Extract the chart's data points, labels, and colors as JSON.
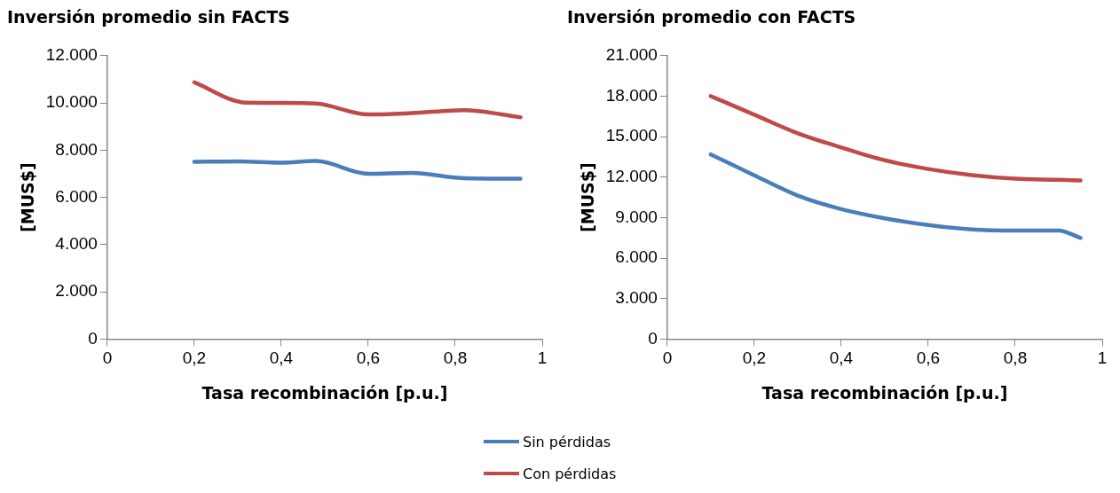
{
  "chart_data": [
    {
      "type": "line",
      "title": "Inversión promedio sin FACTS",
      "xlabel": "Tasa recombinación [p.u.]",
      "ylabel": "[MUS$]",
      "xlim": [
        0,
        1
      ],
      "ylim": [
        0,
        12000
      ],
      "xticks": [
        {
          "value": 0,
          "label": "0"
        },
        {
          "value": 0.2,
          "label": "0,2"
        },
        {
          "value": 0.4,
          "label": "0,4"
        },
        {
          "value": 0.6,
          "label": "0,6"
        },
        {
          "value": 0.8,
          "label": "0,8"
        },
        {
          "value": 1,
          "label": "1"
        }
      ],
      "yticks": [
        0,
        {
          "value": 2000,
          "label": "2.000"
        },
        {
          "value": 4000,
          "label": "4.000"
        },
        {
          "value": 6000,
          "label": "6.000"
        },
        {
          "value": 8000,
          "label": "8.000"
        },
        {
          "value": 10000,
          "label": "10.000"
        },
        {
          "value": 12000,
          "label": "12.000"
        }
      ],
      "grid": false,
      "legend": "bottom",
      "series": [
        {
          "name": "Sin pérdidas",
          "color": "#4a7ebb",
          "x": [
            0.2,
            0.3,
            0.4,
            0.48,
            0.6,
            0.7,
            0.82,
            0.95
          ],
          "values": [
            7510,
            7520,
            7470,
            7540,
            7000,
            7040,
            6810,
            6790
          ]
        },
        {
          "name": "Con pérdidas",
          "color": "#be4b48",
          "x": [
            0.2,
            0.32,
            0.4,
            0.48,
            0.6,
            0.7,
            0.82,
            0.95
          ],
          "values": [
            10870,
            10010,
            10000,
            9970,
            9510,
            9570,
            9690,
            9390
          ]
        }
      ]
    },
    {
      "type": "line",
      "title": "Inversión promedio con FACTS",
      "xlabel": "Tasa recombinación [p.u.]",
      "ylabel": "[MUS$]",
      "xlim": [
        0,
        1
      ],
      "ylim": [
        0,
        21000
      ],
      "xticks": [
        {
          "value": 0,
          "label": "0"
        },
        {
          "value": 0.2,
          "label": "0,2"
        },
        {
          "value": 0.4,
          "label": "0,4"
        },
        {
          "value": 0.6,
          "label": "0,6"
        },
        {
          "value": 0.8,
          "label": "0,8"
        },
        {
          "value": 1,
          "label": "1"
        }
      ],
      "yticks": [
        0,
        {
          "value": 3000,
          "label": "3.000"
        },
        {
          "value": 6000,
          "label": "6.000"
        },
        {
          "value": 9000,
          "label": "9.000"
        },
        {
          "value": 12000,
          "label": "12.000"
        },
        {
          "value": 15000,
          "label": "15.000"
        },
        {
          "value": 18000,
          "label": "18.000"
        },
        {
          "value": 21000,
          "label": "21.000"
        }
      ],
      "grid": false,
      "series": [
        {
          "color": "#4a7ebb",
          "x": [
            0.1,
            0.2,
            0.3,
            0.4,
            0.5,
            0.6,
            0.7,
            0.8,
            0.9,
            0.95
          ],
          "values": [
            13680,
            12130,
            10630,
            9630,
            8950,
            8450,
            8130,
            8050,
            8050,
            7500
          ]
        },
        {
          "color": "#be4b48",
          "x": [
            0.1,
            0.2,
            0.3,
            0.4,
            0.5,
            0.6,
            0.7,
            0.8,
            0.9,
            0.95
          ],
          "values": [
            18000,
            16630,
            15250,
            14200,
            13250,
            12600,
            12150,
            11880,
            11800,
            11750
          ]
        }
      ]
    }
  ]
}
